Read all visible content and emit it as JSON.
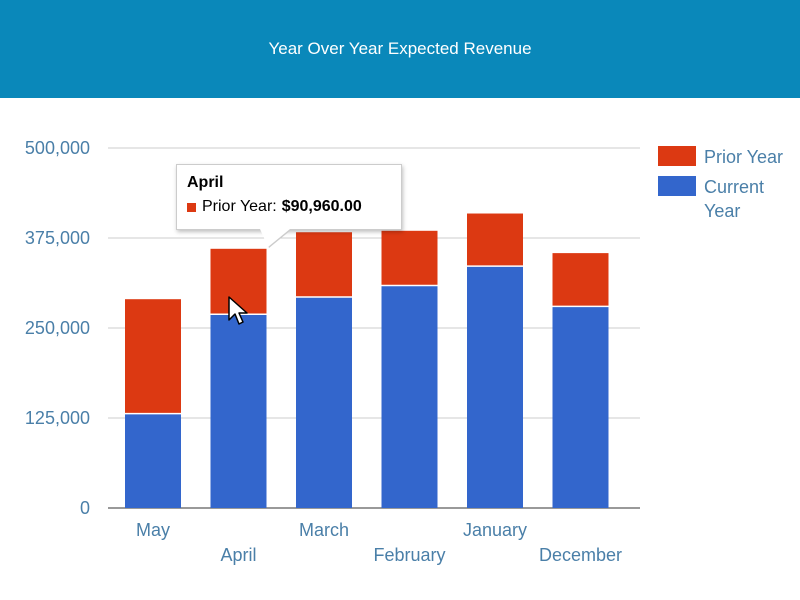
{
  "header": {
    "title": "Year Over Year Expected Revenue"
  },
  "chart_data": {
    "type": "bar",
    "stacked": true,
    "categories": [
      "May",
      "April",
      "March",
      "February",
      "January",
      "December"
    ],
    "series": [
      {
        "name": "Current Year",
        "color": "#3366cc",
        "values": [
          131000,
          269040,
          293000,
          309000,
          336000,
          280000
        ]
      },
      {
        "name": "Prior Year",
        "color": "#dc3912",
        "values": [
          159000,
          90960,
          90000,
          76000,
          73000,
          74000
        ]
      }
    ],
    "ylim": [
      0,
      500000
    ],
    "yticks": [
      0,
      125000,
      250000,
      375000,
      500000
    ],
    "ytick_labels": [
      "0",
      "125,000",
      "250,000",
      "375,000",
      "500,000"
    ],
    "grid": true,
    "legend": {
      "position": "right",
      "entries": [
        "Prior Year",
        "Current Year"
      ]
    }
  },
  "tooltip": {
    "title": "April",
    "series_label": "Prior Year:",
    "value": "$90,960.00"
  },
  "cursor": {
    "icon": "arrow-cursor-icon"
  }
}
